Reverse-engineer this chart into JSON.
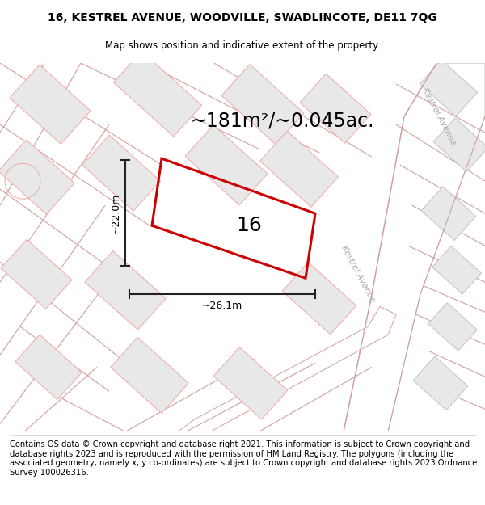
{
  "title": "16, KESTREL AVENUE, WOODVILLE, SWADLINCOTE, DE11 7QG",
  "subtitle": "Map shows position and indicative extent of the property.",
  "area_text": "~181m²/~0.045ac.",
  "width_label": "~26.1m",
  "height_label": "~22.0m",
  "plot_number": "16",
  "footer_text": "Contains OS data © Crown copyright and database right 2021. This information is subject to Crown copyright and database rights 2023 and is reproduced with the permission of HM Land Registry. The polygons (including the associated geometry, namely x, y co-ordinates) are subject to Crown copyright and database rights 2023 Ordnance Survey 100026316.",
  "map_bg": "#ffffff",
  "building_face": "#e8e8e8",
  "building_edge_pink": "#f0b0b0",
  "building_edge_gray": "#c8c8c8",
  "road_border": "#d0a0a0",
  "kestrel_road_color": "#d0c8c8",
  "plot_outline_color": "#cc0000",
  "dim_line_color": "#222222",
  "road_label_color": "#aaaaaa",
  "title_fontsize": 10,
  "subtitle_fontsize": 8.5,
  "area_fontsize": 17,
  "plot_number_fontsize": 18,
  "dim_fontsize": 9,
  "footer_fontsize": 7.2
}
